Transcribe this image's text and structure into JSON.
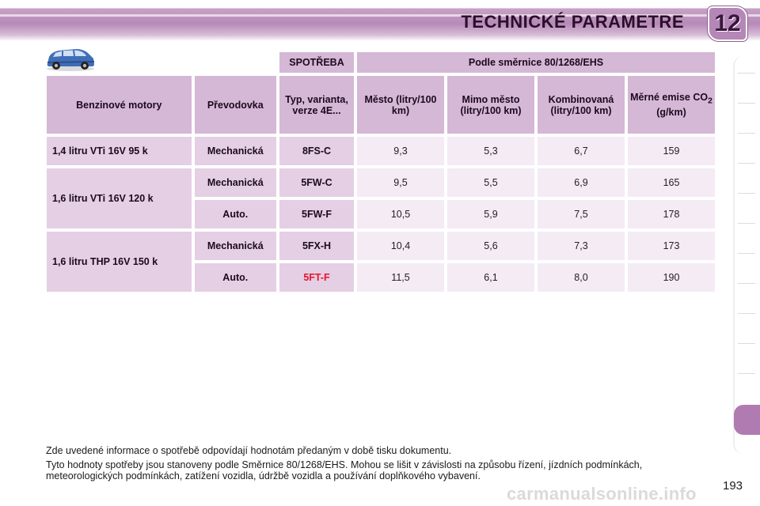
{
  "header": {
    "title": "TECHNICKÉ PARAMETRE",
    "chapter": "12"
  },
  "icons": {
    "car": "car-icon"
  },
  "colors": {
    "header_band": "#b78ab8",
    "table_header": "#d5b7d6",
    "table_label": "#e4cfe5",
    "table_value": "#f4ebf4",
    "highlight_text": "#e6162b",
    "active_tab": "#b07bb1"
  },
  "table": {
    "group_headers": {
      "spotreba": "SPOTŘEBA",
      "directive": "Podle směrnice 80/1268/EHS"
    },
    "columns": {
      "engines": "Benzinové motory",
      "gearbox": "Převodovka",
      "type": "Typ, varianta, verze 4E...",
      "city": "Město (litry/100 km)",
      "extra_urban": "Mimo město (litry/100 km)",
      "combined": "Kombinovaná (litry/100 km)",
      "co2_prefix": "Měrné emise CO",
      "co2_sub": "2",
      "co2_unit": " (g/km)"
    },
    "rows": [
      {
        "engine": "1,4 litru VTi 16V 95 k",
        "gearbox": "Mechanická",
        "type": "8FS-C",
        "city": "9,3",
        "extra": "5,3",
        "combined": "6,7",
        "co2": "159"
      },
      {
        "engine": "1,6 litru VTi 16V 120 k",
        "gearbox": "Mechanická",
        "type": "5FW-C",
        "city": "9,5",
        "extra": "5,5",
        "combined": "6,9",
        "co2": "165"
      },
      {
        "gearbox": "Auto.",
        "type": "5FW-F",
        "city": "10,5",
        "extra": "5,9",
        "combined": "7,5",
        "co2": "178"
      },
      {
        "engine": "1,6 litru THP 16V 150 k",
        "gearbox": "Mechanická",
        "type": "5FX-H",
        "city": "10,4",
        "extra": "5,6",
        "combined": "7,3",
        "co2": "173"
      },
      {
        "gearbox": "Auto.",
        "type": "5FT-F",
        "city": "11,5",
        "extra": "6,1",
        "combined": "8,0",
        "co2": "190"
      }
    ]
  },
  "notes": [
    "Zde uvedené informace o spotřebě odpovídají hodnotám předaným v době tisku dokumentu.",
    "Tyto hodnoty spotřeby jsou stanoveny podle Směrnice 80/1268/EHS. Mohou se lišit v závislosti na způsobu řízení, jízdních podmínkách, meteorologických podmínkách, zatížení vozidla, údržbě vozidla a používání doplňkového vybavení."
  ],
  "page_number": "193",
  "watermark": "carmanualsonline.info"
}
